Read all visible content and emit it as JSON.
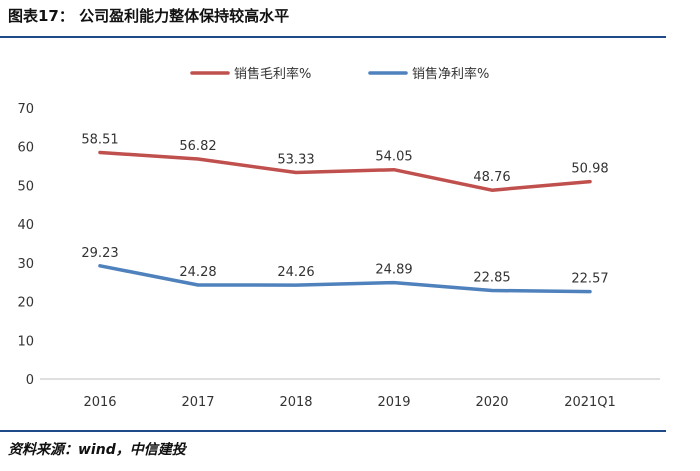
{
  "figure_title": "图表17： 公司盈利能力整体保持较高水平",
  "source": "资料来源：wind，中信建投",
  "chart_data": {
    "type": "line",
    "title": "",
    "categories": [
      "2016",
      "2017",
      "2018",
      "2019",
      "2020",
      "2021Q1"
    ],
    "series": [
      {
        "name": "销售毛利率%",
        "color": "#c0504d",
        "values": [
          58.51,
          56.82,
          53.33,
          54.05,
          48.76,
          50.98
        ],
        "labels": [
          "58.51",
          "56.82",
          "53.33",
          "54.05",
          "48.76",
          "50.98"
        ]
      },
      {
        "name": "销售净利率%",
        "color": "#4f81bd",
        "values": [
          29.23,
          24.28,
          24.26,
          24.89,
          22.85,
          22.57
        ],
        "labels": [
          "29.23",
          "24.28",
          "24.26",
          "24.89",
          "22.85",
          "22.57"
        ]
      }
    ],
    "ylim": [
      0,
      70
    ],
    "yticks": [
      "0",
      "10",
      "20",
      "30",
      "40",
      "50",
      "60",
      "70"
    ],
    "xlabel": "",
    "ylabel": "",
    "grid": false,
    "legend_position": "top-center"
  }
}
